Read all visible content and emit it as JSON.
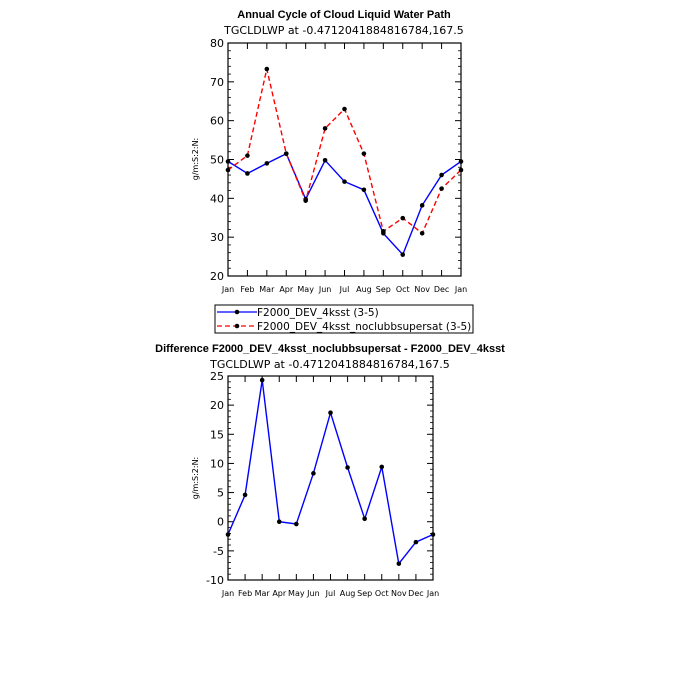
{
  "chart_data": [
    {
      "type": "line",
      "title": "Annual Cycle of Cloud Liquid Water Path",
      "subtitle": "TGCLDLWP at -0.4712041884816784,167.5",
      "xlabel": "",
      "ylabel": "g/m:S:2:N:",
      "categories": [
        "Jan",
        "Feb",
        "Mar",
        "Apr",
        "May",
        "Jun",
        "Jul",
        "Aug",
        "Sep",
        "Oct",
        "Nov",
        "Dec",
        "Jan"
      ],
      "ylim": [
        20,
        80
      ],
      "yticks": [
        20,
        30,
        40,
        50,
        60,
        70,
        80
      ],
      "series": [
        {
          "name": "F2000_DEV_4ksst (3-5)",
          "color": "#0000ff",
          "dash": "solid",
          "values": [
            49.5,
            46.4,
            49.0,
            51.5,
            39.8,
            49.8,
            44.3,
            42.2,
            31.0,
            25.5,
            38.2,
            46.0,
            49.5
          ]
        },
        {
          "name": "F2000_DEV_4ksst_noclubbsupersat (3-5)",
          "color": "#ff0000",
          "dash": "dashed",
          "values": [
            47.3,
            51.0,
            73.3,
            51.5,
            39.4,
            58.0,
            63.0,
            51.5,
            31.5,
            34.9,
            31.0,
            42.5,
            47.3
          ]
        }
      ],
      "legend_position": "below"
    },
    {
      "type": "line",
      "title": "Difference F2000_DEV_4ksst_noclubbsupersat - F2000_DEV_4ksst",
      "subtitle": "TGCLDLWP at -0.4712041884816784,167.5",
      "xlabel": "",
      "ylabel": "g/m:S:2:N:",
      "categories": [
        "Jan",
        "Feb",
        "Mar",
        "Apr",
        "May",
        "Jun",
        "Jul",
        "Aug",
        "Sep",
        "Oct",
        "Nov",
        "Dec",
        "Jan"
      ],
      "ylim": [
        -10,
        25
      ],
      "yticks": [
        -10,
        -5,
        0,
        5,
        10,
        15,
        20,
        25
      ],
      "series": [
        {
          "name": "Difference",
          "color": "#0000ff",
          "dash": "solid",
          "values": [
            -2.2,
            4.6,
            24.3,
            0.0,
            -0.4,
            8.3,
            18.7,
            9.3,
            0.5,
            9.4,
            -7.2,
            -3.5,
            -2.2
          ]
        }
      ]
    }
  ]
}
